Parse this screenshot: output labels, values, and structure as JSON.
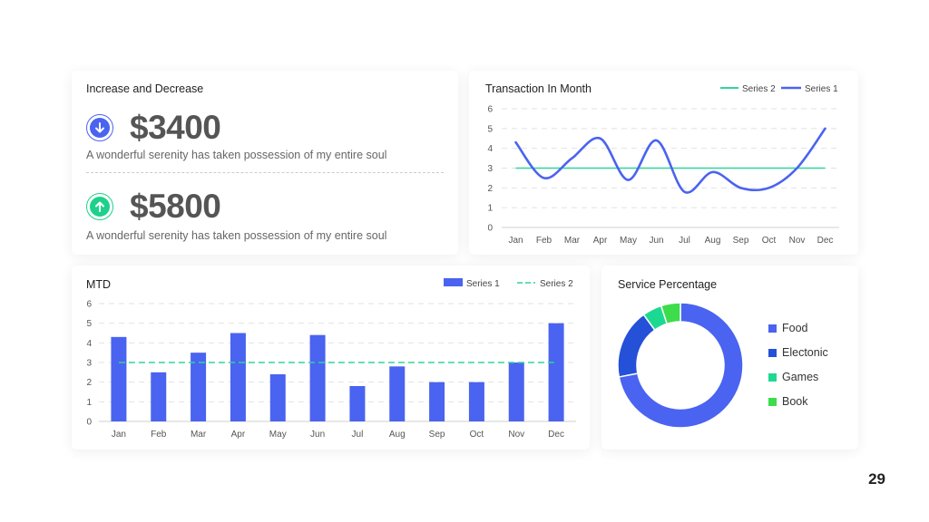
{
  "stats_card": {
    "title": "Increase and Decrease",
    "stats": [
      {
        "value": "$3400",
        "description": "A wonderful serenity has taken possession of my entire soul",
        "direction": "down",
        "color": "#4a63f0"
      },
      {
        "value": "$5800",
        "description": "A wonderful serenity has taken possession of my entire soul",
        "direction": "up",
        "color": "#1dd18a"
      }
    ]
  },
  "chart_data": [
    {
      "id": "transaction",
      "type": "line",
      "title": "Transaction In Month",
      "categories": [
        "Jan",
        "Feb",
        "Mar",
        "Apr",
        "May",
        "Jun",
        "Jul",
        "Aug",
        "Sep",
        "Oct",
        "Nov",
        "Dec"
      ],
      "yticks": [
        0,
        1,
        2,
        3,
        4,
        5,
        6
      ],
      "ylim": [
        0,
        6
      ],
      "grid": true,
      "legend_position": "top-right",
      "series": [
        {
          "name": "Series 2",
          "values": [
            3,
            3,
            3,
            3,
            3,
            3,
            3,
            3,
            3,
            3,
            3,
            3
          ],
          "color": "#2ed69a"
        },
        {
          "name": "Series 1",
          "values": [
            4.3,
            2.5,
            3.5,
            4.5,
            2.4,
            4.4,
            1.8,
            2.8,
            2.0,
            2.0,
            3.0,
            5.0
          ],
          "color": "#4a63f0"
        }
      ]
    },
    {
      "id": "mtd",
      "type": "bar",
      "title": "MTD",
      "categories": [
        "Jan",
        "Feb",
        "Mar",
        "Apr",
        "May",
        "Jun",
        "Jul",
        "Aug",
        "Sep",
        "Oct",
        "Nov",
        "Dec"
      ],
      "yticks": [
        0,
        1,
        2,
        3,
        4,
        5,
        6
      ],
      "ylim": [
        0,
        6
      ],
      "grid": true,
      "legend_position": "top-right",
      "series": [
        {
          "name": "Series 1",
          "values": [
            4.3,
            2.5,
            3.5,
            4.5,
            2.4,
            4.4,
            1.8,
            2.8,
            2.0,
            2.0,
            3.0,
            5.0
          ],
          "color": "#4a63f0"
        },
        {
          "name": "Series 2",
          "values": [
            3,
            3,
            3,
            3,
            3,
            3,
            3,
            3,
            3,
            3,
            3,
            3
          ],
          "color": "#2ed69a"
        }
      ]
    },
    {
      "id": "service",
      "type": "pie",
      "title": "Service Percentage",
      "legend_position": "right",
      "slices": [
        {
          "label": "Food",
          "value": 72,
          "color": "#4a63f0"
        },
        {
          "label": "Electonic",
          "value": 18,
          "color": "#2550d8"
        },
        {
          "label": "Games",
          "value": 5,
          "color": "#1cd991"
        },
        {
          "label": "Book",
          "value": 5,
          "color": "#3ddc4a"
        }
      ]
    }
  ],
  "page_number": "29"
}
